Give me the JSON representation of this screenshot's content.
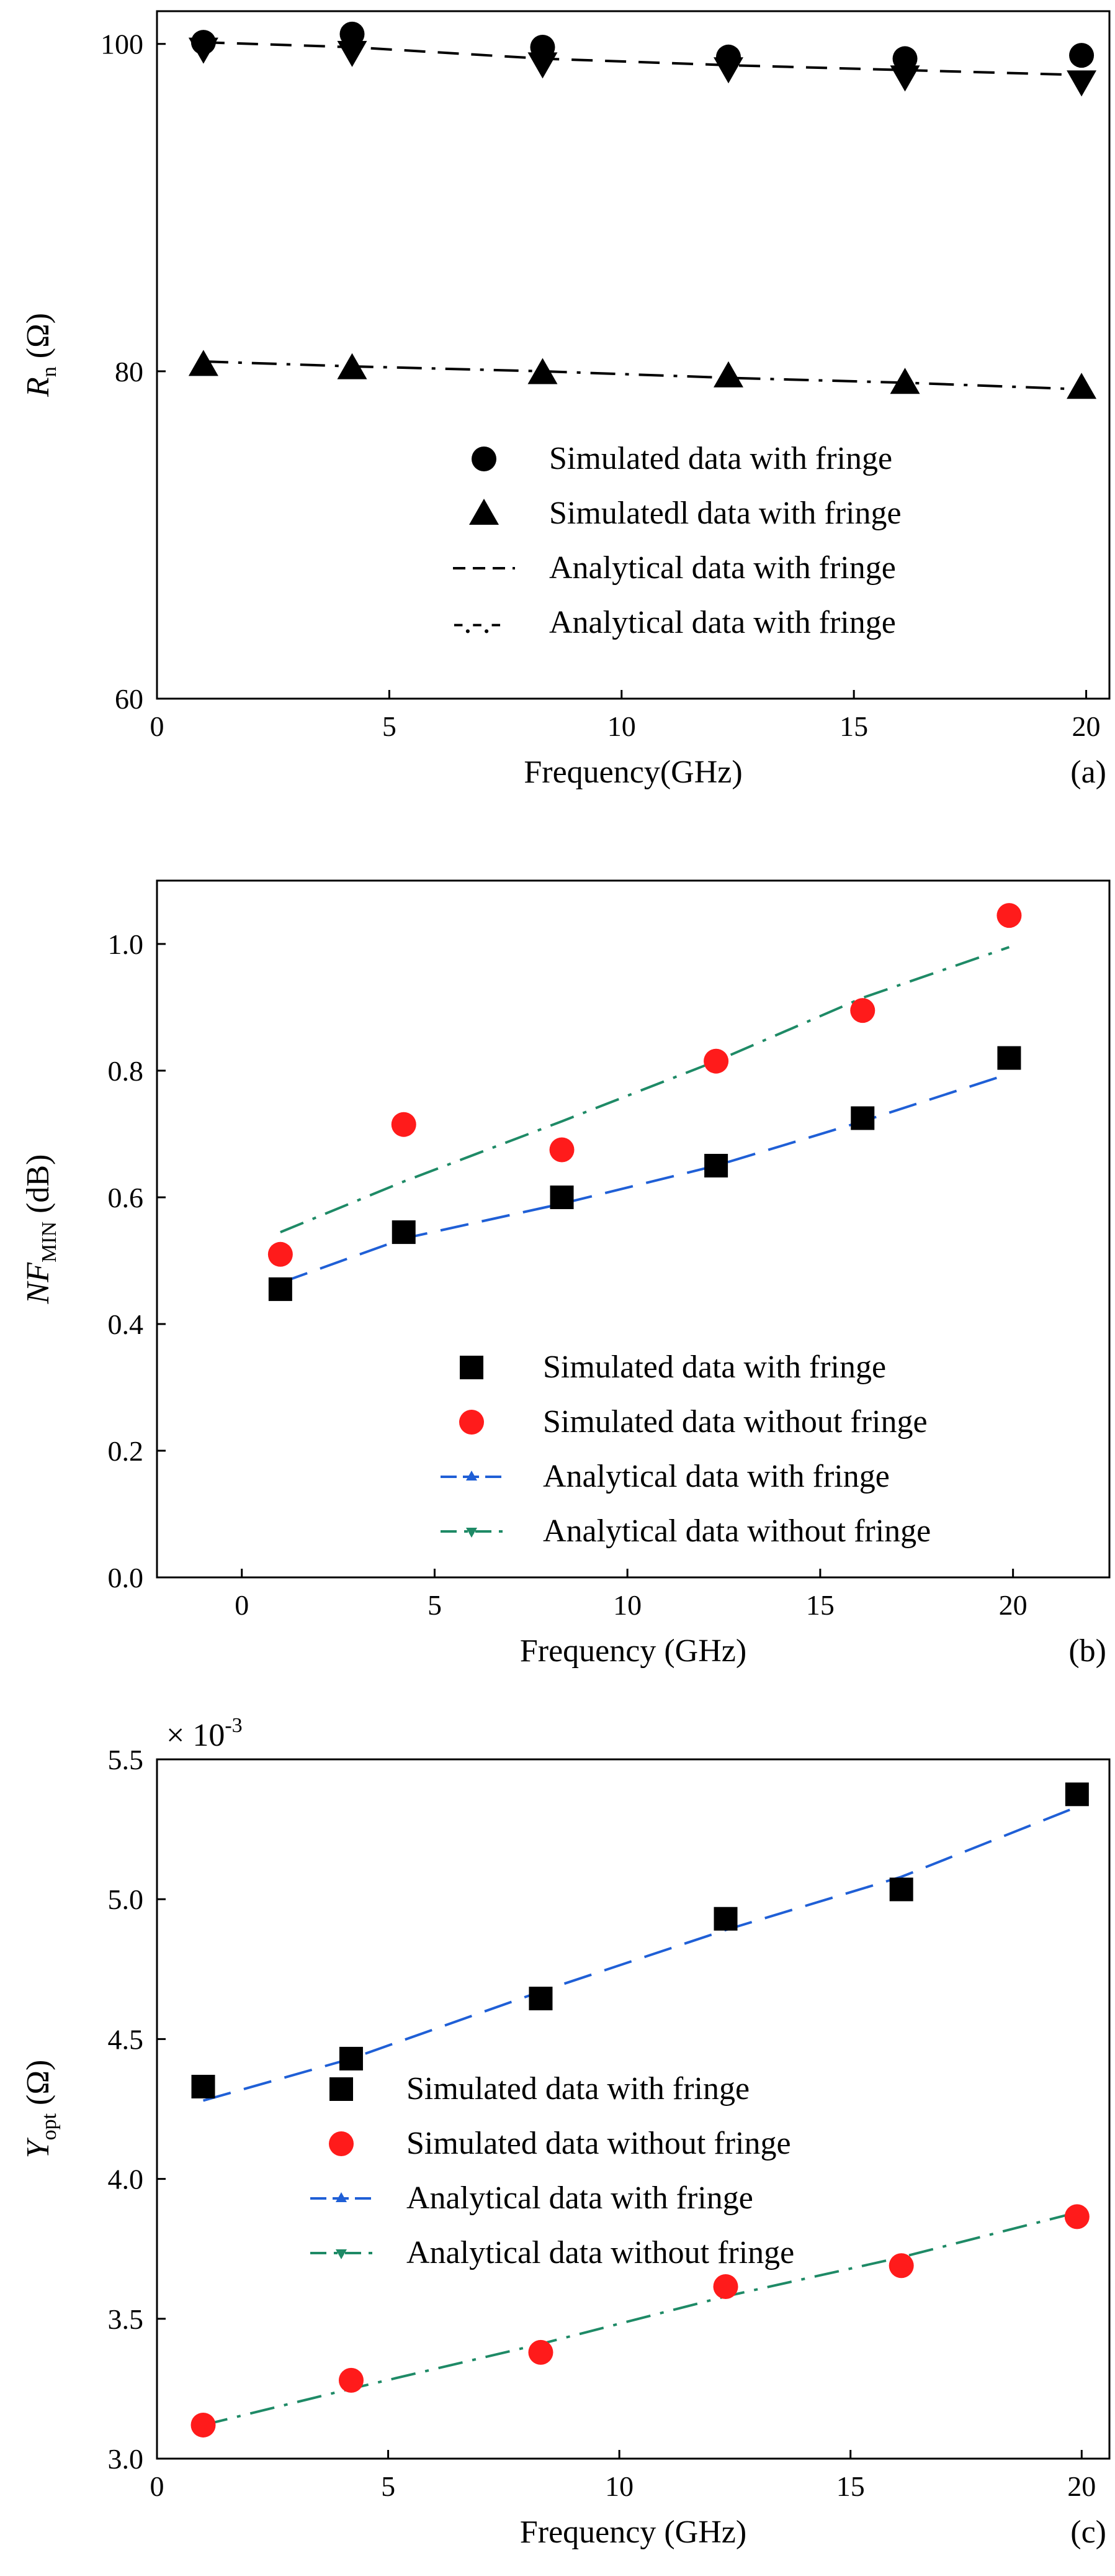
{
  "chart_data": [
    {
      "id": "a",
      "type": "line",
      "panel_tag": "(a)",
      "xlabel": "Frequency(GHz)",
      "ylabel_main": "R",
      "ylabel_sub": "n",
      "ylabel_unit": " (Ω)",
      "xlim": [
        0,
        20.5
      ],
      "ylim": [
        60,
        102
      ],
      "xticks": [
        0,
        5,
        10,
        15,
        20
      ],
      "yticks": [
        60,
        80,
        100
      ],
      "ytick_labels": [
        "60",
        "80",
        "100"
      ],
      "colors": {
        "frame": "#000000"
      },
      "series": [
        {
          "name": "Simulated data with fringe",
          "kind": "marker",
          "shape": "circle",
          "color": "#000000",
          "x": [
            1,
            4.2,
            8.3,
            12.3,
            16.1,
            19.9
          ],
          "y": [
            100.1,
            100.6,
            99.8,
            99.2,
            99.1,
            99.3
          ]
        },
        {
          "name": "Simulated data with fringe",
          "kind": "marker",
          "shape": "triangle-down",
          "color": "#000000",
          "in_legend": false,
          "x": [
            1,
            4.2,
            8.3,
            12.3,
            16.1,
            19.9
          ],
          "y": [
            99.7,
            99.5,
            98.8,
            98.5,
            98.0,
            97.7
          ]
        },
        {
          "name": "Simulatedl data with fringe",
          "kind": "marker",
          "shape": "triangle-up",
          "color": "#000000",
          "x": [
            1,
            4.2,
            8.3,
            12.3,
            16.1,
            19.9
          ],
          "y": [
            80.4,
            80.2,
            79.9,
            79.7,
            79.3,
            79.0
          ]
        },
        {
          "name": "Analytical data with fringe",
          "kind": "line",
          "dash": "dash",
          "legend_sample": "dash",
          "color": "#000000",
          "x": [
            1,
            4.2,
            8.3,
            12.3,
            16.1,
            19.9
          ],
          "y": [
            100.1,
            99.8,
            99.1,
            98.7,
            98.4,
            98.1
          ]
        },
        {
          "name": "Analytical data with fringe",
          "kind": "line",
          "dash": "dashdot",
          "legend_sample": "dashdot-text",
          "legend_sample_text": "-.-.-",
          "color": "#000000",
          "x": [
            1,
            4.2,
            8.3,
            12.3,
            16.1,
            19.9
          ],
          "y": [
            80.6,
            80.3,
            80.0,
            79.6,
            79.3,
            78.9
          ]
        }
      ]
    },
    {
      "id": "b",
      "type": "line",
      "panel_tag": "(b)",
      "xlabel": "Frequency (GHz)",
      "ylabel_main": "NF",
      "ylabel_sub": "MIN",
      "ylabel_unit": " (dB)",
      "xlim": [
        -2.2,
        22.5
      ],
      "ylim": [
        0.0,
        1.1
      ],
      "xticks": [
        0,
        5,
        10,
        15,
        20
      ],
      "yticks": [
        0.0,
        0.2,
        0.4,
        0.6,
        0.8,
        1.0
      ],
      "ytick_labels": [
        "0.0",
        "0.2",
        "0.4",
        "0.6",
        "0.8",
        "1.0"
      ],
      "colors": {
        "blue": "#1f5fd6",
        "green": "#1e8a66",
        "red": "#ff1b1b",
        "black": "#000000"
      },
      "series": [
        {
          "name": "Simulated data with fringe",
          "kind": "marker",
          "shape": "square",
          "color": "#000000",
          "x": [
            1,
            4.2,
            8.3,
            12.3,
            16.1,
            19.9
          ],
          "y": [
            0.455,
            0.545,
            0.6,
            0.65,
            0.725,
            0.82
          ]
        },
        {
          "name": "Simulated data without fringe",
          "kind": "marker",
          "shape": "circle",
          "color": "#ff1b1b",
          "x": [
            1,
            4.2,
            8.3,
            12.3,
            16.1,
            19.9
          ],
          "y": [
            0.51,
            0.715,
            0.675,
            0.815,
            0.895,
            1.045
          ]
        },
        {
          "name": "Analytical data with fringe",
          "kind": "line",
          "dash": "longdash",
          "legend_sample": "line-triangle-up",
          "color": "#1f5fd6",
          "x": [
            1,
            4.2,
            8.3,
            12.3,
            16.1,
            19.9
          ],
          "y": [
            0.465,
            0.535,
            0.59,
            0.65,
            0.72,
            0.795
          ]
        },
        {
          "name": "Analytical data without fringe",
          "kind": "line",
          "dash": "dashdot",
          "legend_sample": "line-triangle-down",
          "color": "#1e8a66",
          "x": [
            1,
            4.2,
            8.3,
            12.3,
            16.1,
            19.9
          ],
          "y": [
            0.545,
            0.625,
            0.72,
            0.815,
            0.915,
            0.995
          ]
        }
      ]
    },
    {
      "id": "c",
      "type": "line",
      "panel_tag": "(c)",
      "xlabel": "Frequency (GHz)",
      "ylabel_main": "Y",
      "ylabel_sub": "opt",
      "ylabel_unit": " (Ω)",
      "multiplier": "× 10",
      "multiplier_exp": "-3",
      "xlim": [
        0,
        20.6
      ],
      "ylim": [
        3.0,
        5.5
      ],
      "xticks": [
        0,
        5,
        10,
        15,
        20
      ],
      "yticks": [
        3.0,
        3.5,
        4.0,
        4.5,
        5.0,
        5.5
      ],
      "ytick_labels": [
        "3.0",
        "3.5",
        "4.0",
        "4.5",
        "5.0",
        "5.5"
      ],
      "colors": {
        "blue": "#1f5fd6",
        "green": "#1e8a66",
        "red": "#ff1b1b",
        "black": "#000000"
      },
      "series": [
        {
          "name": "Simulated data with fringe",
          "kind": "marker",
          "shape": "square",
          "color": "#000000",
          "x": [
            1,
            4.2,
            8.3,
            12.3,
            16.1,
            19.9
          ],
          "y": [
            4.33,
            4.43,
            4.645,
            4.93,
            5.035,
            5.375
          ]
        },
        {
          "name": "Simulated data without fringe",
          "kind": "marker",
          "shape": "circle",
          "color": "#ff1b1b",
          "x": [
            1,
            4.2,
            8.3,
            12.3,
            16.1,
            19.9
          ],
          "y": [
            3.12,
            3.28,
            3.38,
            3.615,
            3.69,
            3.865
          ]
        },
        {
          "name": "Analytical  data with fringe",
          "kind": "line",
          "dash": "longdash",
          "legend_sample": "line-triangle-up",
          "color": "#1f5fd6",
          "x": [
            1,
            4.2,
            8.3,
            12.3,
            16.1,
            19.9
          ],
          "y": [
            4.28,
            4.43,
            4.67,
            4.89,
            5.08,
            5.33
          ]
        },
        {
          "name": "Analytical  data without fringe",
          "kind": "line",
          "dash": "dashdot",
          "legend_sample": "line-triangle-down",
          "color": "#1e8a66",
          "x": [
            1,
            4.2,
            8.3,
            12.3,
            16.1,
            19.9
          ],
          "y": [
            3.12,
            3.25,
            3.41,
            3.58,
            3.72,
            3.88
          ]
        }
      ]
    }
  ]
}
